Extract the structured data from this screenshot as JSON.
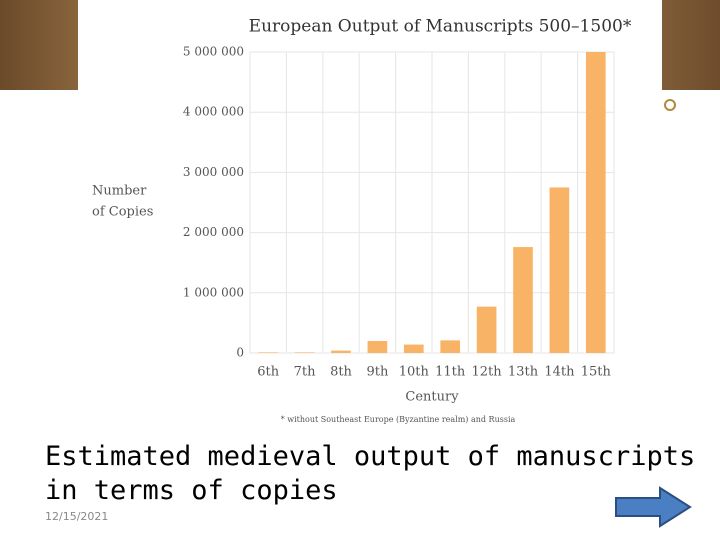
{
  "chart_data": {
    "type": "bar",
    "title": "European Output of Manuscripts 500–1500*",
    "y_label": [
      "Number",
      "of Copies"
    ],
    "x_label": "Century",
    "footnote": "* without Southeast Europe (Byzantine realm) and Russia",
    "categories": [
      "6th",
      "7th",
      "8th",
      "9th",
      "10th",
      "11th",
      "12th",
      "13th",
      "14th",
      "15th"
    ],
    "values": [
      10000,
      10000,
      40000,
      200000,
      140000,
      210000,
      770000,
      1760000,
      2750000,
      5000000
    ],
    "color": "#f9b366",
    "ylim": [
      0,
      5000000
    ],
    "yticks": [
      0,
      {
        "value": 1000000,
        "label": "1 000 000"
      },
      {
        "value": 2000000,
        "label": "2 000 000"
      },
      {
        "value": 3000000,
        "label": "3 000 000"
      },
      {
        "value": 4000000,
        "label": "4 000 000"
      },
      {
        "value": 5000000,
        "label": "5 000 000"
      }
    ],
    "grid": true
  },
  "caption": "Estimated medieval output of manuscripts in terms of copies",
  "date": "12/15/2021"
}
